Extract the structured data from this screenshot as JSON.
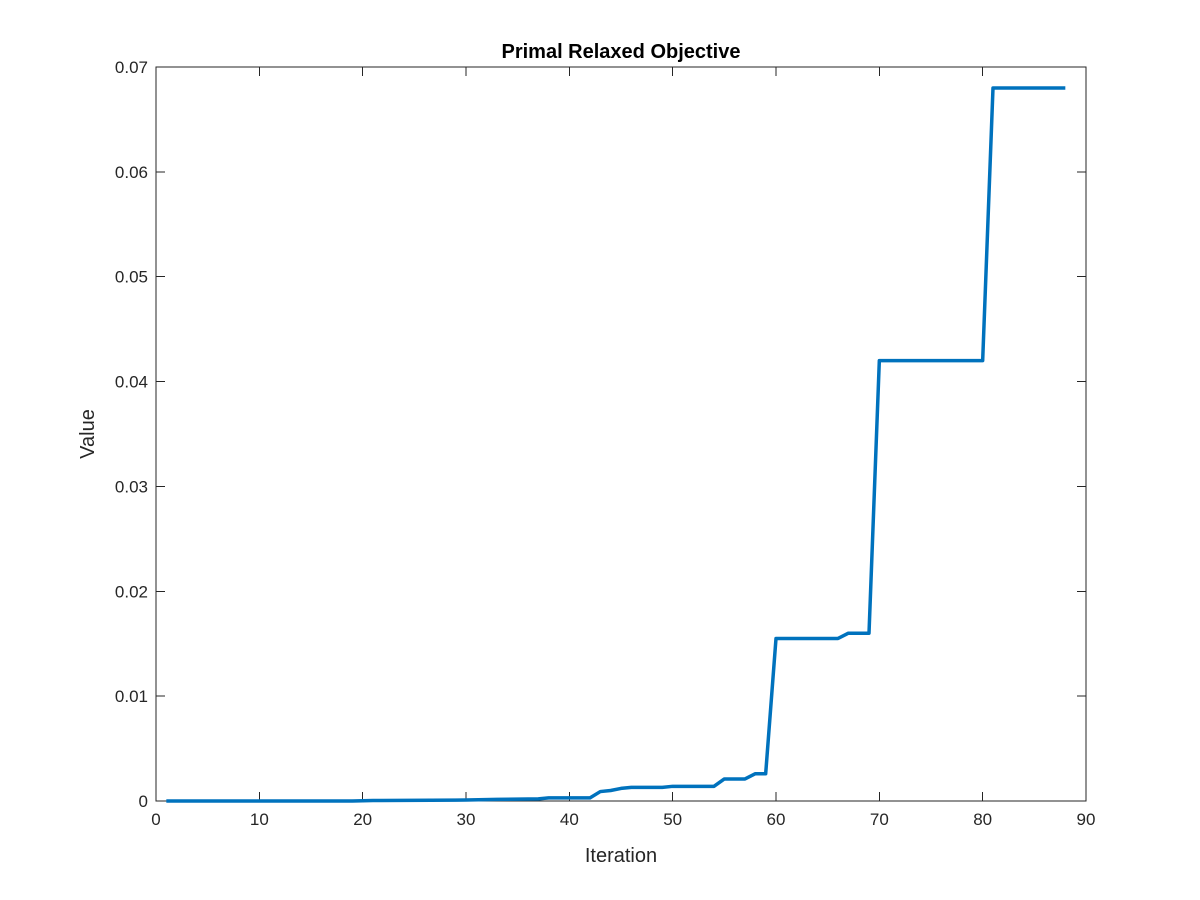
{
  "chart_data": {
    "type": "line",
    "title": "Primal Relaxed Objective",
    "xlabel": "Iteration",
    "ylabel": "Value",
    "xlim": [
      0,
      90
    ],
    "ylim": [
      0,
      0.07
    ],
    "xticks": [
      0,
      10,
      20,
      30,
      40,
      50,
      60,
      70,
      80,
      90
    ],
    "xtick_labels": [
      "0",
      "10",
      "20",
      "30",
      "40",
      "50",
      "60",
      "70",
      "80",
      "90"
    ],
    "yticks": [
      0,
      0.01,
      0.02,
      0.03,
      0.04,
      0.05,
      0.06,
      0.07
    ],
    "ytick_labels": [
      "0",
      "0.01",
      "0.02",
      "0.03",
      "0.04",
      "0.05",
      "0.06",
      "0.07"
    ],
    "grid": false,
    "line_color": "#0072BD",
    "axis_color": "#262626",
    "series": [
      {
        "x": [
          1,
          19,
          20,
          21,
          29,
          30,
          33,
          37,
          38,
          42,
          43,
          44,
          45,
          46,
          49,
          50,
          54,
          55,
          57,
          58,
          59,
          60,
          66,
          67,
          69,
          70,
          80,
          81,
          88
        ],
        "y": [
          0,
          0,
          2e-05,
          5e-05,
          8e-05,
          0.0001,
          0.00015,
          0.0002,
          0.0003,
          0.0003,
          0.0009,
          0.001,
          0.0012,
          0.0013,
          0.0013,
          0.0014,
          0.0014,
          0.0021,
          0.0021,
          0.0026,
          0.0026,
          0.0155,
          0.0155,
          0.016,
          0.016,
          0.042,
          0.042,
          0.068,
          0.068
        ]
      }
    ]
  }
}
